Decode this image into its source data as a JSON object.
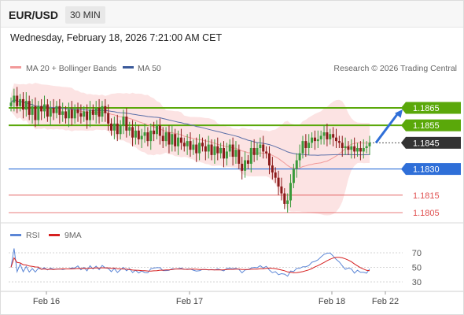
{
  "header": {
    "symbol": "EUR/USD",
    "timeframe": "30 MIN"
  },
  "datetime": "Wednesday, February 18, 2026 7:21:00 AM CET",
  "legend": {
    "ma20_bb": "MA 20 + Bollinger Bands",
    "ma50": "MA 50",
    "credit": "Research © 2026 Trading Central",
    "rsi": "RSI",
    "ma9": "9MA"
  },
  "colors": {
    "bull": "#3a9a3a",
    "bear": "#8b1a1a",
    "ma20": "#f29a9a",
    "bb_fill": "#fcdede",
    "ma50": "#5b6fa8",
    "resistance": "#5aa80a",
    "pivot": "#2f6fd8",
    "support": "#e05050",
    "current": "#333333",
    "rsi": "#5b86d6",
    "ma9": "#d62020",
    "arrow": "#2f6fd8"
  },
  "chart_data": {
    "type": "candlestick",
    "x_ticks": [
      "Feb 16",
      "Feb 17",
      "Feb 18",
      "Feb 22"
    ],
    "ylim": [
      1.1795,
      1.188
    ],
    "levels": [
      {
        "label": "1.1865",
        "value": 1.1865,
        "kind": "resistance"
      },
      {
        "label": "1.1855",
        "value": 1.1855,
        "kind": "resistance"
      },
      {
        "label": "1.1845",
        "value": 1.1845,
        "kind": "current"
      },
      {
        "label": "1.1830",
        "value": 1.183,
        "kind": "pivot"
      },
      {
        "label": "1.1815",
        "value": 1.1815,
        "kind": "support"
      },
      {
        "label": "1.1805",
        "value": 1.1805,
        "kind": "support"
      }
    ],
    "closes": [
      1.1868,
      1.1872,
      1.1866,
      1.187,
      1.1864,
      1.1869,
      1.1861,
      1.1866,
      1.1858,
      1.1866,
      1.1863,
      1.1867,
      1.186,
      1.1865,
      1.1862,
      1.1866,
      1.1861,
      1.1863,
      1.1859,
      1.1864,
      1.1859,
      1.1864,
      1.1862,
      1.186,
      1.1863,
      1.1858,
      1.1864,
      1.1861,
      1.1865,
      1.186,
      1.1866,
      1.1862,
      1.1856,
      1.1852,
      1.1856,
      1.185,
      1.1855,
      1.186,
      1.1852,
      1.1854,
      1.1848,
      1.1852,
      1.1847,
      1.1849,
      1.1851,
      1.1846,
      1.1852,
      1.185,
      1.1855,
      1.1849,
      1.1846,
      1.1851,
      1.1844,
      1.185,
      1.1843,
      1.1848,
      1.1845,
      1.1843,
      1.1846,
      1.1841,
      1.1844,
      1.1839,
      1.1845,
      1.1843,
      1.184,
      1.1844,
      1.1838,
      1.1843,
      1.1839,
      1.1842,
      1.1836,
      1.184,
      1.1844,
      1.1837,
      1.1841,
      1.1833,
      1.1829,
      1.1835,
      1.1833,
      1.1842,
      1.1838,
      1.1842,
      1.1844,
      1.184,
      1.1839,
      1.1832,
      1.1828,
      1.1825,
      1.182,
      1.1816,
      1.181,
      1.1812,
      1.1822,
      1.183,
      1.1835,
      1.1839,
      1.1846,
      1.1842,
      1.1845,
      1.1848,
      1.1846,
      1.1847,
      1.1849,
      1.1851,
      1.1847,
      1.185,
      1.1848,
      1.1846,
      1.1845,
      1.1842,
      1.1843,
      1.1841,
      1.1843,
      1.184,
      1.1842,
      1.184,
      1.1842,
      1.1843,
      1.1845
    ],
    "rsi_levels": [
      70,
      50,
      30
    ],
    "rsi_ylim": [
      20,
      80
    ]
  }
}
